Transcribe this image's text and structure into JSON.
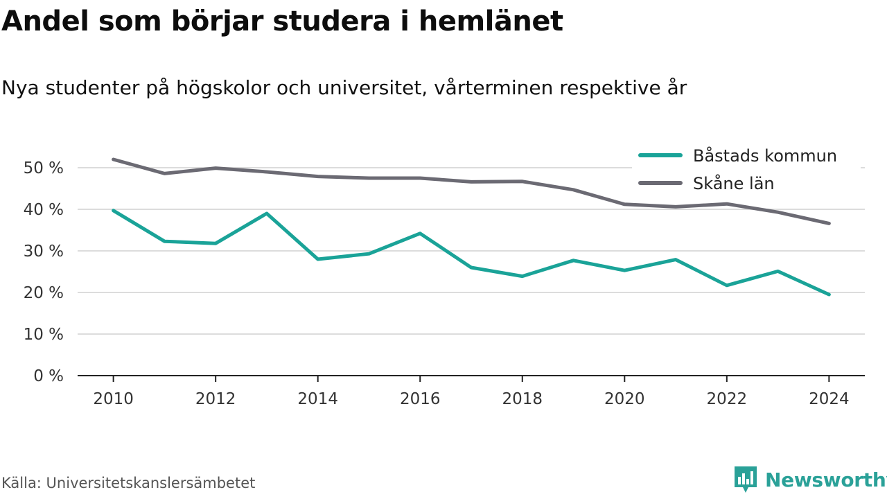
{
  "title": "Andel som börjar studera i hemlänet",
  "subtitle": "Nya studenter på högskolor och universitet, vårterminen respektive år",
  "source": "Källa: Universitetskanslersämbetet",
  "brand": {
    "name": "Newsworthy",
    "icon": "newsworthy-logo-icon",
    "color": "#2aa198"
  },
  "chart_data": {
    "type": "line",
    "x": [
      2010,
      2011,
      2012,
      2013,
      2014,
      2015,
      2016,
      2017,
      2018,
      2019,
      2020,
      2021,
      2022,
      2023,
      2024
    ],
    "x_tick_labels": [
      "2010",
      "2012",
      "2014",
      "2016",
      "2018",
      "2020",
      "2022",
      "2024"
    ],
    "y_ticks": [
      0,
      10,
      20,
      30,
      40,
      50
    ],
    "y_tick_labels": [
      "0 %",
      "10 %",
      "20 %",
      "30 %",
      "40 %",
      "50 %"
    ],
    "ylim": [
      0,
      55
    ],
    "xlim": [
      2009.3,
      2024.7
    ],
    "grid": true,
    "legend_position": "top-right",
    "series": [
      {
        "name": "Båstads kommun",
        "color": "#1aa398",
        "values": [
          39.7,
          32.3,
          31.8,
          39.0,
          28.0,
          29.3,
          34.2,
          26.0,
          23.9,
          27.7,
          25.3,
          27.9,
          21.7,
          25.1,
          19.5
        ]
      },
      {
        "name": "Skåne län",
        "color": "#6b6a73",
        "values": [
          52.0,
          48.6,
          49.9,
          49.0,
          47.9,
          47.5,
          47.5,
          46.6,
          46.7,
          44.7,
          41.2,
          40.6,
          41.3,
          39.3,
          36.6
        ]
      }
    ]
  }
}
